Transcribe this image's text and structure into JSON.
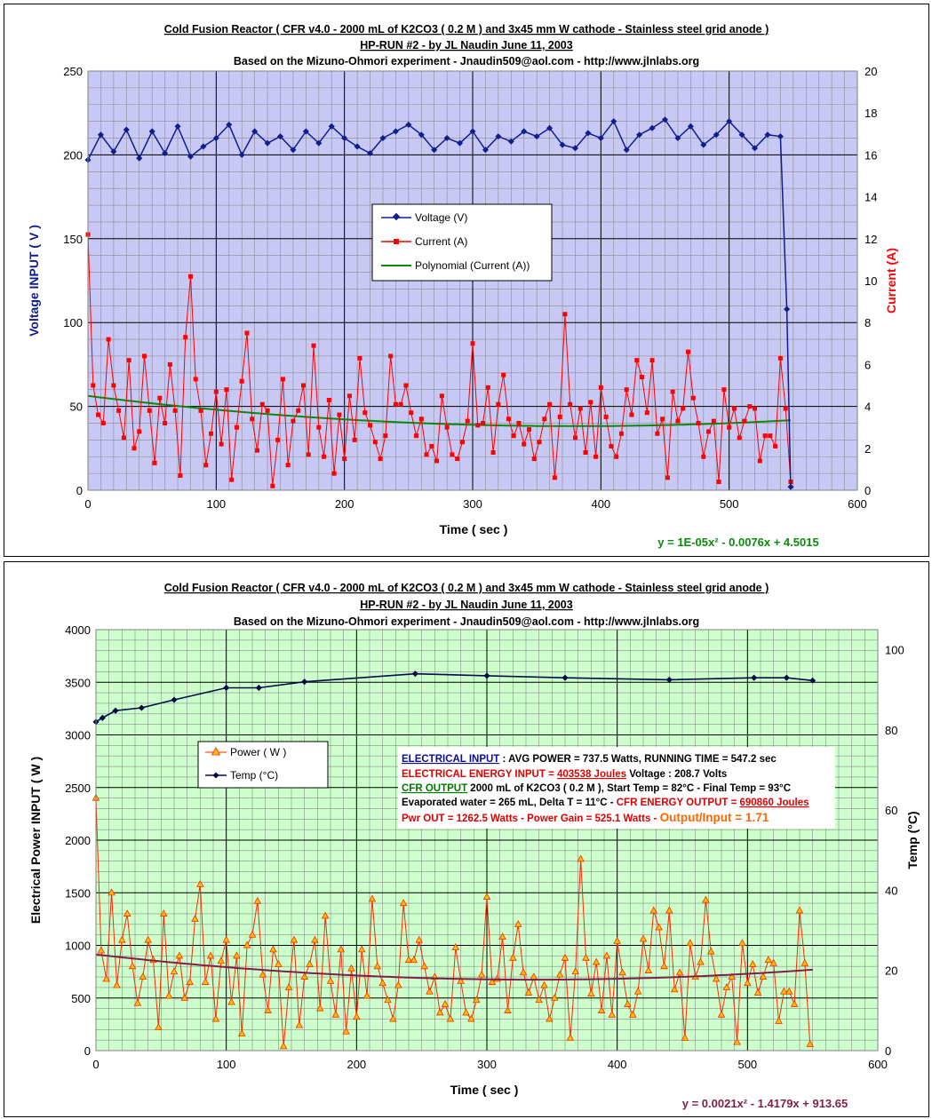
{
  "colors": {
    "plot1_bg": "#c8c8f5",
    "plot2_bg": "#ccffcc",
    "voltage": "#0f1e8c",
    "current": "#ff0000",
    "current_fit": "#0a8a0a",
    "power_line": "#ff2a00",
    "power_marker": "#ffc000",
    "temp": "#000a46",
    "power_fit": "#80204a",
    "info_blue": "#0a0a9a",
    "info_red": "#e00000",
    "info_green": "#007700",
    "info_orange": "#ff6600"
  },
  "chart_data": [
    {
      "type": "line",
      "title": "Cold Fusion Reactor ( CFR v4.0 - 2000 mL of K2CO3 ( 0.2 M ) and 3x45 mm W cathode - Stainless steel grid anode  )",
      "subtitle": "HP-RUN #2 - by JL Naudin June 11, 2003",
      "subtitle2": "Based on the Mizuno-Ohmori experiment - Jnaudin509@aol.com - http://www.jlnlabs.org",
      "xlabel": "Time ( sec )",
      "ylabel": "Voltage INPUT ( V )",
      "y2label": "Current (A)",
      "xlim": [
        0,
        600
      ],
      "ylim": [
        0,
        250
      ],
      "y2lim": [
        0,
        20
      ],
      "xticks": [
        "0",
        "100",
        "200",
        "300",
        "400",
        "500",
        "600"
      ],
      "yticks": [
        "0",
        "50",
        "100",
        "150",
        "200",
        "250"
      ],
      "y2ticks": [
        "0",
        "2",
        "4",
        "6",
        "8",
        "10",
        "12",
        "14",
        "16",
        "18",
        "20"
      ],
      "grid": true,
      "legend_position": "center",
      "legend": [
        "Voltage (V)",
        "Current (A)",
        "Polynomial (Current (A))"
      ],
      "fit_equation": "y = 1E-05x² - 0.0076x + 4.5015",
      "series": [
        {
          "name": "Voltage (V)",
          "axis": "left",
          "x": [
            0,
            10,
            20,
            30,
            40,
            50,
            60,
            70,
            80,
            90,
            100,
            110,
            120,
            130,
            140,
            150,
            160,
            170,
            180,
            190,
            200,
            210,
            220,
            230,
            240,
            250,
            260,
            270,
            280,
            290,
            300,
            310,
            320,
            330,
            340,
            350,
            360,
            370,
            380,
            390,
            400,
            410,
            420,
            430,
            440,
            450,
            460,
            470,
            480,
            490,
            500,
            510,
            520,
            530,
            540,
            545,
            548
          ],
          "y": [
            197,
            212,
            202,
            215,
            198,
            214,
            201,
            217,
            199,
            205,
            210,
            218,
            200,
            214,
            207,
            211,
            203,
            214,
            207,
            217,
            210,
            205,
            201,
            210,
            214,
            218,
            212,
            203,
            210,
            207,
            214,
            203,
            211,
            208,
            214,
            211,
            216,
            206,
            204,
            213,
            210,
            220,
            203,
            212,
            216,
            221,
            210,
            217,
            206,
            212,
            220,
            212,
            204,
            212,
            211,
            108,
            2
          ]
        },
        {
          "name": "Current (A)",
          "axis": "right",
          "x": [
            0,
            4,
            8,
            12,
            16,
            20,
            24,
            28,
            32,
            36,
            40,
            44,
            48,
            52,
            56,
            60,
            64,
            68,
            72,
            76,
            80,
            84,
            88,
            92,
            96,
            100,
            104,
            108,
            112,
            116,
            120,
            124,
            128,
            132,
            136,
            140,
            144,
            148,
            152,
            156,
            160,
            164,
            168,
            172,
            176,
            180,
            184,
            188,
            192,
            196,
            200,
            204,
            208,
            212,
            216,
            220,
            224,
            228,
            232,
            236,
            240,
            244,
            248,
            252,
            256,
            260,
            264,
            268,
            272,
            276,
            280,
            284,
            288,
            292,
            296,
            300,
            304,
            308,
            312,
            316,
            320,
            324,
            328,
            332,
            336,
            340,
            344,
            348,
            352,
            356,
            360,
            364,
            368,
            372,
            376,
            380,
            384,
            388,
            392,
            396,
            400,
            404,
            408,
            412,
            416,
            420,
            424,
            428,
            432,
            436,
            440,
            444,
            448,
            452,
            456,
            460,
            464,
            468,
            472,
            476,
            480,
            484,
            488,
            492,
            496,
            500,
            504,
            508,
            512,
            516,
            520,
            524,
            528,
            532,
            536,
            540,
            544,
            548
          ],
          "y": [
            12.2,
            5.0,
            3.6,
            3.2,
            7.2,
            5.0,
            3.8,
            2.5,
            6.2,
            2.0,
            2.8,
            6.4,
            3.8,
            1.3,
            4.4,
            3.2,
            6.0,
            3.8,
            0.7,
            7.3,
            10.2,
            5.3,
            3.8,
            1.2,
            2.7,
            4.7,
            2.2,
            4.8,
            0.5,
            3.0,
            5.2,
            7.5,
            3.4,
            1.9,
            4.1,
            3.8,
            0.2,
            2.4,
            5.3,
            1.2,
            3.3,
            3.8,
            5.0,
            1.7,
            6.9,
            3.0,
            1.6,
            4.3,
            0.8,
            3.6,
            1.5,
            4.5,
            2.4,
            6.3,
            3.7,
            3.1,
            2.3,
            1.5,
            2.6,
            6.4,
            4.1,
            4.1,
            5.0,
            3.7,
            2.6,
            3.4,
            1.7,
            2.1,
            1.4,
            4.5,
            3.0,
            1.7,
            1.5,
            2.3,
            3.3,
            7.0,
            3.1,
            3.2,
            4.9,
            1.8,
            4.1,
            5.5,
            3.4,
            2.6,
            3.2,
            2.2,
            2.9,
            1.5,
            2.3,
            3.4,
            4.1,
            0.6,
            3.5,
            8.4,
            4.1,
            2.5,
            3.9,
            1.8,
            4.2,
            1.6,
            4.9,
            3.5,
            2.1,
            1.6,
            2.7,
            4.8,
            3.6,
            6.2,
            5.4,
            3.7,
            6.2,
            2.7,
            3.4,
            0.6,
            4.7,
            3.3,
            3.9,
            6.6,
            4.4,
            3.2,
            1.6,
            2.8,
            3.3,
            0.4,
            4.8,
            3.0,
            3.9,
            2.5,
            3.3,
            4.0,
            3.9,
            1.4,
            2.6,
            2.6,
            2.1,
            6.3,
            3.9,
            0.4
          ]
        },
        {
          "name": "Polynomial (Current (A))",
          "axis": "right",
          "equation": "y = 1E-05x² - 0.0076x + 4.5015",
          "x_range": [
            0,
            548
          ]
        }
      ]
    },
    {
      "type": "line",
      "title": "Cold Fusion Reactor ( CFR v4.0 - 2000 mL of K2CO3 ( 0.2 M ) and 3x45 mm W cathode - Stainless steel grid anode  )",
      "subtitle": "HP-RUN #2 - by JL Naudin June 11, 2003",
      "subtitle2": "Based on the Mizuno-Ohmori experiment - Jnaudin509@aol.com - http://www.jlnlabs.org",
      "xlabel": "Time ( sec )",
      "ylabel": "Electrical Power INPUT ( W )",
      "y2label": "Temp (°C)",
      "xlim": [
        0,
        600
      ],
      "ylim": [
        0,
        4000
      ],
      "y2lim": [
        0,
        105
      ],
      "xticks": [
        "0",
        "100",
        "200",
        "300",
        "400",
        "500",
        "600"
      ],
      "yticks": [
        "0",
        "500",
        "1000",
        "1500",
        "2000",
        "2500",
        "3000",
        "3500",
        "4000"
      ],
      "y2ticks": [
        "0",
        "20",
        "40",
        "60",
        "80",
        "100"
      ],
      "grid": true,
      "legend_position": "left",
      "legend": [
        "Power ( W )",
        "Temp (°C)"
      ],
      "fit_equation": "y = 0.0021x² - 1.4179x + 913.65",
      "series": [
        {
          "name": "Power ( W )",
          "axis": "left",
          "x": [
            0,
            4,
            8,
            12,
            16,
            20,
            24,
            28,
            32,
            36,
            40,
            44,
            48,
            52,
            56,
            60,
            64,
            68,
            72,
            76,
            80,
            84,
            88,
            92,
            96,
            100,
            104,
            108,
            112,
            116,
            120,
            124,
            128,
            132,
            136,
            140,
            144,
            148,
            152,
            156,
            160,
            164,
            168,
            172,
            176,
            180,
            184,
            188,
            192,
            196,
            200,
            204,
            208,
            212,
            216,
            220,
            224,
            228,
            232,
            236,
            240,
            244,
            248,
            252,
            256,
            260,
            264,
            268,
            272,
            276,
            280,
            284,
            288,
            292,
            296,
            300,
            304,
            308,
            312,
            316,
            320,
            324,
            328,
            332,
            336,
            340,
            344,
            348,
            352,
            356,
            360,
            364,
            368,
            372,
            376,
            380,
            384,
            388,
            392,
            396,
            400,
            404,
            408,
            412,
            416,
            420,
            424,
            428,
            432,
            436,
            440,
            444,
            448,
            452,
            456,
            460,
            464,
            468,
            472,
            476,
            480,
            484,
            488,
            492,
            496,
            500,
            504,
            508,
            512,
            516,
            520,
            524,
            528,
            532,
            536,
            540,
            544,
            548
          ],
          "y": [
            2400,
            950,
            680,
            1500,
            620,
            1050,
            1300,
            800,
            450,
            700,
            1050,
            860,
            220,
            1300,
            520,
            750,
            900,
            500,
            650,
            1250,
            1580,
            650,
            900,
            300,
            850,
            1050,
            460,
            900,
            160,
            1000,
            1100,
            1420,
            720,
            380,
            960,
            820,
            40,
            600,
            1050,
            240,
            700,
            820,
            1050,
            400,
            1280,
            660,
            340,
            960,
            180,
            780,
            320,
            960,
            520,
            1440,
            800,
            640,
            480,
            300,
            620,
            1400,
            860,
            860,
            1050,
            800,
            560,
            700,
            360,
            440,
            300,
            980,
            660,
            360,
            300,
            480,
            720,
            1460,
            650,
            680,
            1080,
            380,
            880,
            1200,
            740,
            550,
            700,
            480,
            620,
            300,
            500,
            720,
            880,
            120,
            750,
            1820,
            880,
            540,
            840,
            380,
            900,
            340,
            1040,
            740,
            440,
            340,
            560,
            1060,
            760,
            1330,
            1170,
            800,
            1330,
            580,
            740,
            120,
            1020,
            700,
            840,
            1430,
            940,
            680,
            340,
            600,
            700,
            80,
            1020,
            640,
            820,
            550,
            700,
            860,
            830,
            280,
            560,
            560,
            440,
            1330,
            830,
            60
          ]
        },
        {
          "name": "Temp (°C)",
          "axis": "right",
          "x": [
            0,
            5,
            15,
            35,
            60,
            100,
            125,
            160,
            245,
            300,
            360,
            440,
            505,
            530,
            550
          ],
          "y": [
            82,
            83,
            84.8,
            85.5,
            87.5,
            90.5,
            90.5,
            92,
            94,
            93.5,
            93,
            92.5,
            93,
            93,
            92.3
          ]
        },
        {
          "name": "Polynomial (Power)",
          "axis": "left",
          "equation": "y = 0.0021x² - 1.4179x + 913.65",
          "x_range": [
            0,
            550
          ]
        }
      ],
      "info_box": {
        "line1_label": "ELECTRICAL INPUT",
        "line1_text": " : AVG POWER = 737.5 Watts, RUNNING TIME = 547.2 sec",
        "line2_label": "ELECTRICAL  ENERGY INPUT = ",
        "line2_value": "403538 Joules",
        "line2_text": "          Voltage : 208.7 Volts",
        "line3_label": "CFR OUTPUT",
        "line3_text": " 2000 mL of K2CO3 ( 0.2 M ), Start Temp = 82°C - Final Temp = 93°C",
        "line4_text": "Evaporated water = 265 mL,  Delta T = 11°C - ",
        "line4_label": "CFR ENERGY OUTPUT = ",
        "line4_value": "690860 Joules",
        "line5_text": "Pwr OUT = 1262.5 Watts - Power Gain = 525.1 Watts - ",
        "line5_ratio": "Output/Input = 1.71"
      }
    }
  ]
}
